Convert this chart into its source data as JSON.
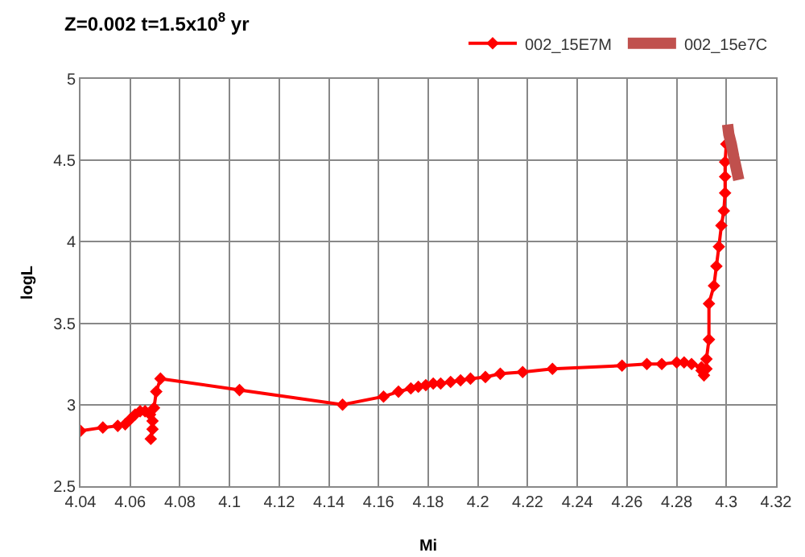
{
  "chart_data": {
    "type": "line",
    "title": "Z=0.002 t=1.5x10$^{8}$ yr",
    "xlabel": "Mi",
    "ylabel": "logL",
    "xlim": [
      4.04,
      4.32
    ],
    "xticks": [
      4.04,
      4.06,
      4.08,
      4.1,
      4.12,
      4.14,
      4.16,
      4.18,
      4.2,
      4.22,
      4.24,
      4.26,
      4.28,
      4.3,
      4.32
    ],
    "ylim": [
      2.5,
      5
    ],
    "yticks": [
      2.5,
      3,
      3.5,
      4,
      4.5,
      5
    ],
    "grid": true,
    "legend": "top right",
    "series": [
      {
        "name": "002_15E7M",
        "color": "#ff0000",
        "marker": "diamond",
        "x": [
          4.04,
          4.049,
          4.055,
          4.058,
          4.06,
          4.062,
          4.064,
          4.066,
          4.068,
          4.069,
          4.069,
          4.0683,
          4.0696,
          4.0705,
          4.0722,
          4.104,
          4.1455,
          4.162,
          4.168,
          4.173,
          4.176,
          4.179,
          4.182,
          4.185,
          4.189,
          4.193,
          4.197,
          4.203,
          4.209,
          4.218,
          4.23,
          4.258,
          4.268,
          4.274,
          4.28,
          4.283,
          4.286,
          4.29,
          4.29,
          4.291,
          4.292,
          4.292,
          4.293,
          4.293,
          4.295,
          4.296,
          4.297,
          4.298,
          4.299,
          4.2995,
          4.2995,
          4.2995,
          4.3
        ],
        "values": [
          2.84,
          2.86,
          2.87,
          2.88,
          2.91,
          2.94,
          2.96,
          2.96,
          2.94,
          2.9,
          2.85,
          2.79,
          2.98,
          3.08,
          3.16,
          3.09,
          3.0,
          3.05,
          3.08,
          3.1,
          3.11,
          3.12,
          3.13,
          3.13,
          3.14,
          3.15,
          3.16,
          3.17,
          3.19,
          3.2,
          3.22,
          3.24,
          3.25,
          3.25,
          3.26,
          3.26,
          3.25,
          3.23,
          3.21,
          3.18,
          3.22,
          3.28,
          3.4,
          3.62,
          3.73,
          3.85,
          3.97,
          4.1,
          4.19,
          4.3,
          4.4,
          4.49,
          4.6
        ]
      },
      {
        "name": "002_15e7C",
        "color": "#c0504d",
        "marker": "none",
        "x": [
          4.3005,
          4.301,
          4.302,
          4.303,
          4.304,
          4.305
        ],
        "values": [
          4.72,
          4.66,
          4.6,
          4.52,
          4.45,
          4.38
        ]
      }
    ]
  }
}
